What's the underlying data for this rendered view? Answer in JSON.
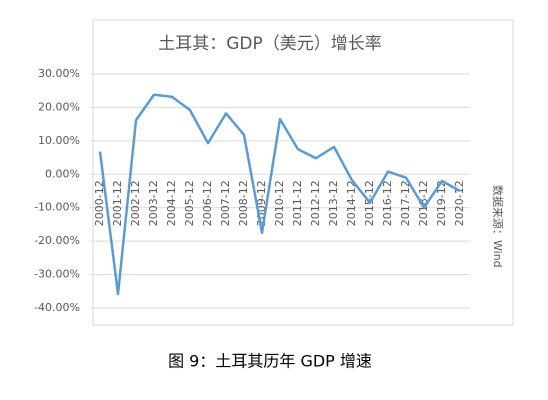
{
  "chart_data": {
    "type": "line",
    "title": "土耳其：GDP（美元）增长率",
    "categories": [
      "2000-12",
      "2001-12",
      "2002-12",
      "2003-12",
      "2004-12",
      "2005-12",
      "2006-12",
      "2007-12",
      "2008-12",
      "2009-12",
      "2010-12",
      "2011-12",
      "2012-12",
      "2013-12",
      "2014-12",
      "2015-12",
      "2016-12",
      "2017-12",
      "2018-12",
      "2019-12",
      "2020-12"
    ],
    "values": [
      6.8,
      -35.8,
      16.2,
      23.8,
      23.2,
      19.2,
      9.3,
      18.2,
      11.8,
      -17.5,
      16.5,
      7.5,
      4.8,
      8.2,
      -1.8,
      -8.5,
      0.8,
      -1.0,
      -10.0,
      -2.0,
      -5.0
    ],
    "color": "#5b9bd5",
    "ylim": [
      -40,
      30
    ],
    "yticks": [
      {
        "value": -40,
        "label": "-40.00%"
      },
      {
        "value": -30,
        "label": "-30.00%"
      },
      {
        "value": -20,
        "label": "-20.00%"
      },
      {
        "value": -10,
        "label": "-10.00%"
      },
      {
        "value": 0,
        "label": "0.00%"
      },
      {
        "value": 10,
        "label": "10.00%"
      },
      {
        "value": 20,
        "label": "20.00%"
      },
      {
        "value": 30,
        "label": "30.00%"
      }
    ],
    "grid": true,
    "source": "数据来源：Wind"
  },
  "caption": "图 9：土耳其历年 GDP 增速"
}
